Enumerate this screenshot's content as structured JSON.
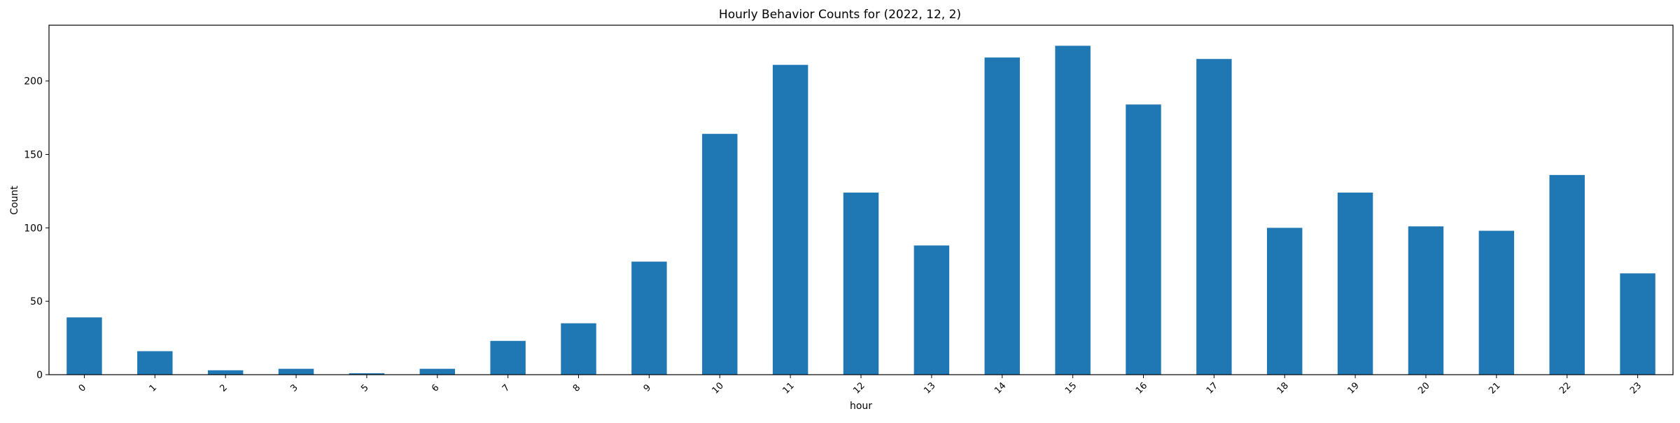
{
  "chart_data": {
    "type": "bar",
    "title": "Hourly Behavior Counts for (2022, 12, 2)",
    "xlabel": "hour",
    "ylabel": "Count",
    "categories": [
      "0",
      "1",
      "2",
      "3",
      "5",
      "6",
      "7",
      "8",
      "9",
      "10",
      "11",
      "12",
      "13",
      "14",
      "15",
      "16",
      "17",
      "18",
      "19",
      "20",
      "21",
      "22",
      "23"
    ],
    "values": [
      39,
      16,
      3,
      4,
      1,
      4,
      23,
      35,
      77,
      164,
      211,
      124,
      88,
      216,
      224,
      184,
      215,
      100,
      124,
      101,
      98,
      136,
      69
    ],
    "ylim": [
      0,
      238
    ],
    "yticks": [
      0,
      50,
      100,
      150,
      200
    ],
    "grid": false,
    "bar_color": "#1f77b4"
  }
}
